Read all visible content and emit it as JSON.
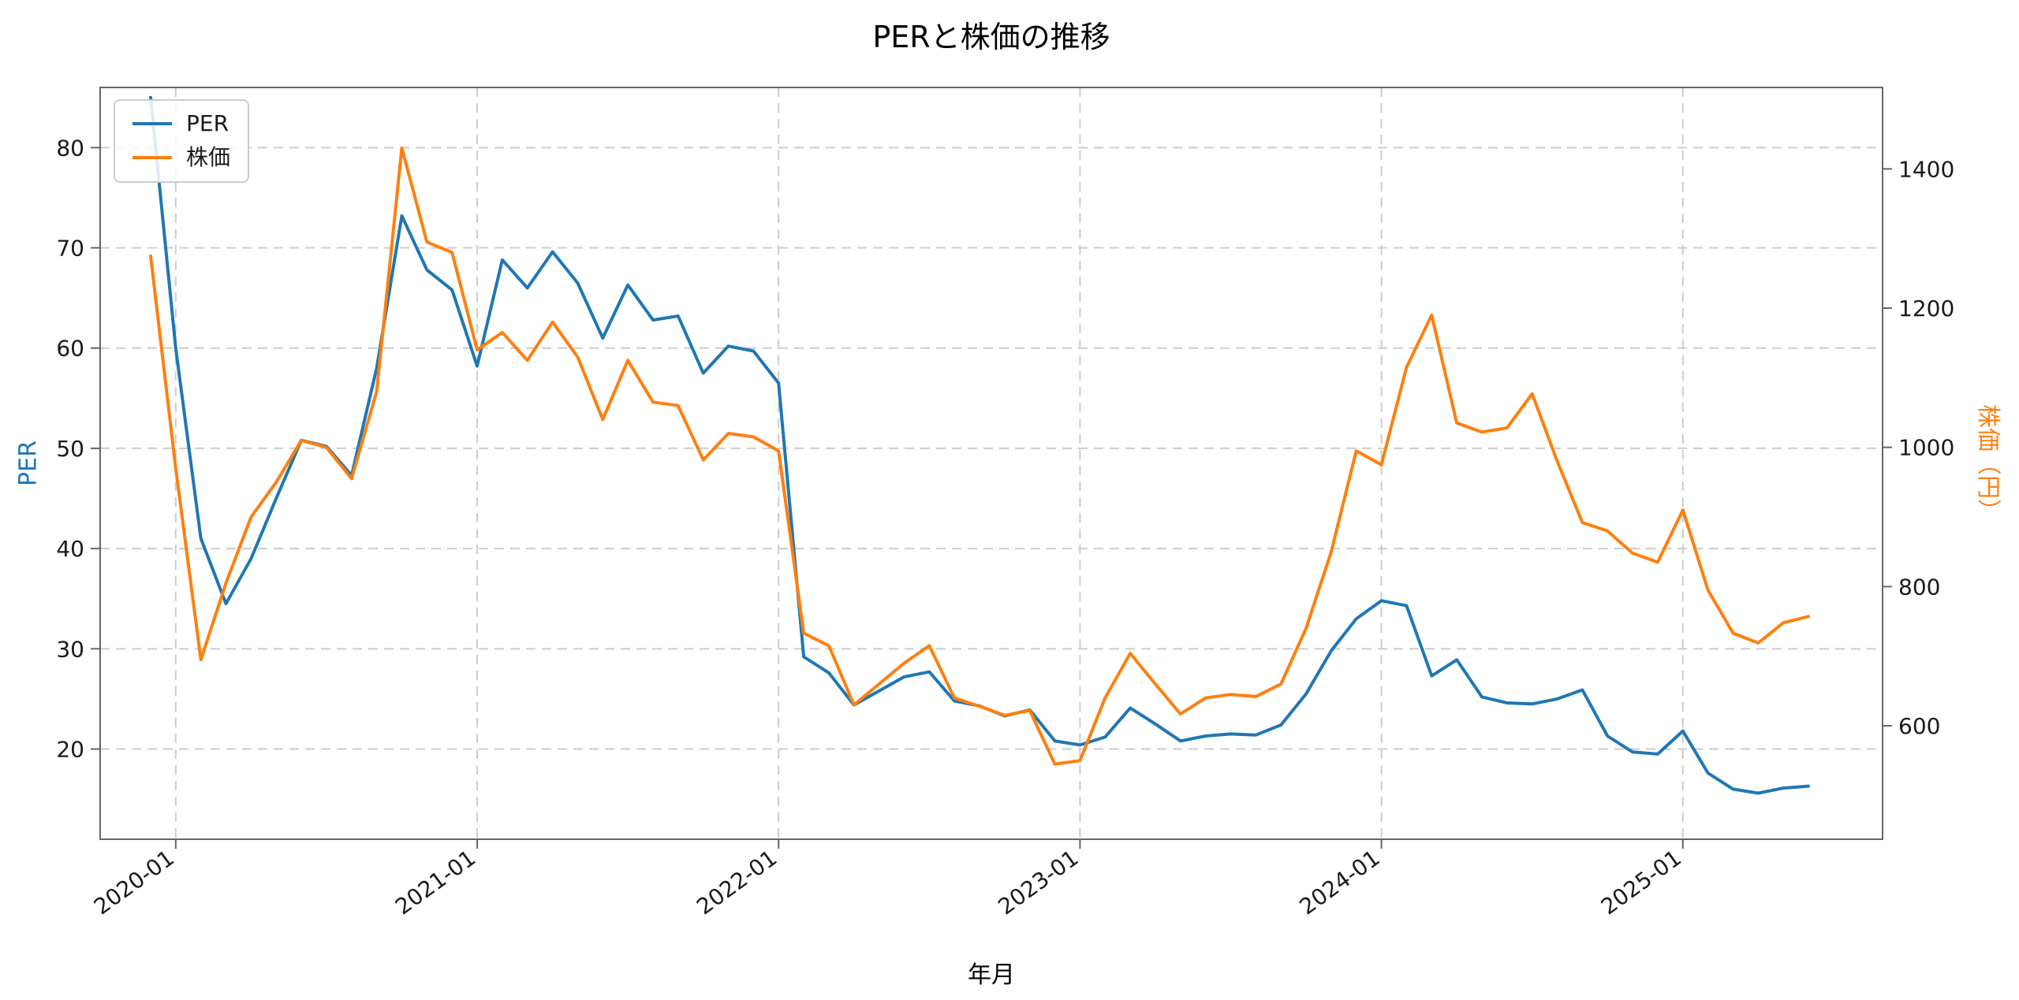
{
  "chart_data": {
    "type": "line",
    "title": "PERと株価の推移",
    "xlabel": "年月",
    "ylabel_left": "PER",
    "ylabel_right": "株価（円）",
    "grid": {
      "show": true,
      "style": "dashed",
      "color": "#cccccc"
    },
    "legend": {
      "position": "upper-left",
      "entries": [
        "PER",
        "株価"
      ]
    },
    "x_tick_positions": [
      1,
      13,
      25,
      37,
      49,
      61
    ],
    "x_tick_labels": [
      "2020-01",
      "2021-01",
      "2022-01",
      "2023-01",
      "2024-01",
      "2025-01"
    ],
    "left_axis": {
      "label": "PER",
      "color": "#1f77b4",
      "ticks": [
        20,
        30,
        40,
        50,
        60,
        70,
        80
      ],
      "range": [
        11,
        86
      ]
    },
    "right_axis": {
      "label": "株価（円）",
      "color": "#ff7f0e",
      "ticks": [
        600,
        800,
        1000,
        1200,
        1400
      ],
      "range": [
        437,
        1517
      ]
    },
    "x": [
      "2019-12",
      "2020-01",
      "2020-02",
      "2020-03",
      "2020-04",
      "2020-05",
      "2020-06",
      "2020-07",
      "2020-08",
      "2020-09",
      "2020-10",
      "2020-11",
      "2020-12",
      "2021-01",
      "2021-02",
      "2021-03",
      "2021-04",
      "2021-05",
      "2021-06",
      "2021-07",
      "2021-08",
      "2021-09",
      "2021-10",
      "2021-11",
      "2021-12",
      "2022-01",
      "2022-02",
      "2022-03",
      "2022-04",
      "2022-05",
      "2022-06",
      "2022-07",
      "2022-08",
      "2022-09",
      "2022-10",
      "2022-11",
      "2022-12",
      "2023-01",
      "2023-02",
      "2023-03",
      "2023-04",
      "2023-05",
      "2023-06",
      "2023-07",
      "2023-08",
      "2023-09",
      "2023-10",
      "2023-11",
      "2023-12",
      "2024-01",
      "2024-02",
      "2024-03",
      "2024-04",
      "2024-05",
      "2024-06",
      "2024-07",
      "2024-08",
      "2024-09",
      "2024-10",
      "2024-11",
      "2024-12",
      "2025-01",
      "2025-02",
      "2025-03",
      "2025-04",
      "2025-05",
      "2025-06"
    ],
    "series": [
      {
        "name": "PER",
        "axis": "left",
        "color": "#1f77b4",
        "values": [
          85.0,
          60.0,
          41.0,
          34.5,
          39.0,
          45.0,
          50.8,
          50.2,
          47.3,
          58.0,
          73.2,
          67.8,
          65.8,
          58.2,
          68.8,
          66.0,
          69.6,
          66.5,
          61.0,
          66.3,
          62.8,
          63.2,
          57.5,
          60.2,
          59.7,
          56.5,
          29.2,
          27.6,
          24.4,
          25.8,
          27.2,
          27.7,
          24.8,
          24.3,
          23.3,
          23.9,
          20.8,
          20.4,
          21.2,
          24.1,
          22.5,
          20.8,
          21.3,
          21.5,
          21.4,
          22.4,
          25.5,
          29.8,
          33.0,
          34.8,
          34.3,
          27.3,
          28.9,
          25.2,
          24.6,
          24.5,
          25.0,
          25.9,
          21.3,
          19.7,
          19.5,
          21.8,
          17.6,
          16.0,
          15.6,
          16.1,
          16.3
        ]
      },
      {
        "name": "株価",
        "axis": "right",
        "color": "#ff7f0e",
        "values": [
          1275,
          970,
          695,
          805,
          900,
          950,
          1010,
          1000,
          955,
          1080,
          1430,
          1295,
          1280,
          1140,
          1165,
          1125,
          1180,
          1130,
          1040,
          1125,
          1065,
          1060,
          982,
          1020,
          1015,
          995,
          733,
          715,
          630,
          660,
          690,
          715,
          640,
          628,
          615,
          622,
          545,
          550,
          640,
          704,
          660,
          617,
          640,
          645,
          642,
          660,
          740,
          850,
          995,
          975,
          1115,
          1190,
          1035,
          1022,
          1028,
          1077,
          980,
          892,
          880,
          848,
          835,
          910,
          795,
          733,
          719,
          748,
          757
        ]
      }
    ]
  }
}
